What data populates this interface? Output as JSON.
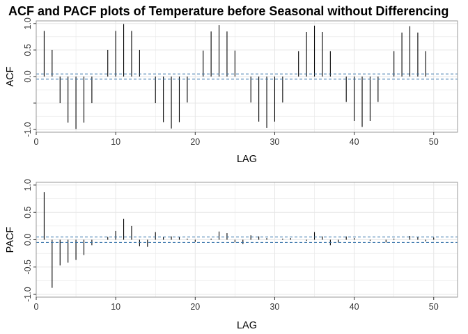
{
  "title": "ACF and PACF plots of Temperature before Seasonal without Differencing",
  "chart_data": [
    {
      "type": "bar",
      "xlabel": "LAG",
      "ylabel": "ACF",
      "xlim": [
        0,
        53
      ],
      "ylim": [
        -1.05,
        1.05
      ],
      "xticks": [
        0,
        10,
        20,
        30,
        40,
        50
      ],
      "yticks": [
        -1.0,
        -0.5,
        0.0,
        0.5,
        1.0
      ],
      "ytick_labels": [
        "-1.0",
        "",
        "0.0",
        "0.5",
        "1.0"
      ],
      "confidence_band": [
        -0.049,
        0.049
      ],
      "grid": true,
      "x": [
        1,
        2,
        3,
        4,
        5,
        6,
        7,
        8,
        9,
        10,
        11,
        12,
        13,
        14,
        15,
        16,
        17,
        18,
        19,
        20,
        21,
        22,
        23,
        24,
        25,
        26,
        27,
        28,
        29,
        30,
        31,
        32,
        33,
        34,
        35,
        36,
        37,
        38,
        39,
        40,
        41,
        42,
        43,
        44,
        45,
        46,
        47,
        48,
        49,
        50
      ],
      "values": [
        0.86,
        0.5,
        -0.5,
        -0.87,
        -0.99,
        -0.87,
        -0.5,
        0.0,
        0.5,
        0.86,
        0.99,
        0.86,
        0.5,
        0.0,
        -0.5,
        -0.86,
        -0.98,
        -0.86,
        -0.49,
        0.0,
        0.49,
        0.85,
        0.97,
        0.85,
        0.49,
        0.0,
        -0.49,
        -0.85,
        -0.97,
        -0.85,
        -0.49,
        0.0,
        0.48,
        0.84,
        0.96,
        0.84,
        0.48,
        0.0,
        -0.48,
        -0.84,
        -0.95,
        -0.84,
        -0.48,
        0.0,
        0.48,
        0.83,
        0.95,
        0.83,
        0.48,
        0.0
      ]
    },
    {
      "type": "bar",
      "xlabel": "LAG",
      "ylabel": "PACF",
      "xlim": [
        0,
        53
      ],
      "ylim": [
        -1.05,
        1.05
      ],
      "xticks": [
        0,
        10,
        20,
        30,
        40,
        50
      ],
      "yticks": [
        -1.0,
        -0.5,
        0.0,
        0.5,
        1.0
      ],
      "ytick_labels": [
        "-1.0",
        "-0.5",
        "0.0",
        "0.5",
        "1.0"
      ],
      "confidence_band": [
        -0.049,
        0.049
      ],
      "grid": true,
      "x": [
        1,
        2,
        3,
        4,
        5,
        6,
        7,
        8,
        9,
        10,
        11,
        12,
        13,
        14,
        15,
        16,
        17,
        18,
        19,
        20,
        21,
        22,
        23,
        24,
        25,
        26,
        27,
        28,
        29,
        30,
        31,
        32,
        33,
        34,
        35,
        36,
        37,
        38,
        39,
        40,
        41,
        42,
        43,
        44,
        45,
        46,
        47,
        48,
        49,
        50
      ],
      "values": [
        0.87,
        -0.88,
        -0.47,
        -0.42,
        -0.37,
        -0.28,
        -0.1,
        0.0,
        0.05,
        0.16,
        0.38,
        0.25,
        -0.12,
        -0.13,
        0.14,
        0.05,
        0.06,
        0.05,
        0.02,
        -0.04,
        0.0,
        0.02,
        0.15,
        0.12,
        -0.05,
        -0.08,
        0.08,
        0.06,
        0.03,
        0.0,
        0.02,
        0.03,
        0.0,
        -0.02,
        0.14,
        0.06,
        -0.1,
        -0.05,
        0.06,
        0.03,
        0.0,
        -0.02,
        0.0,
        -0.05,
        0.02,
        0.0,
        0.07,
        0.05,
        -0.03,
        0.04
      ]
    }
  ],
  "colors": {
    "bar": "#000000",
    "band": "#2e6fa7",
    "grid": "#e6e6e6",
    "frame": "#9a9a9a"
  }
}
